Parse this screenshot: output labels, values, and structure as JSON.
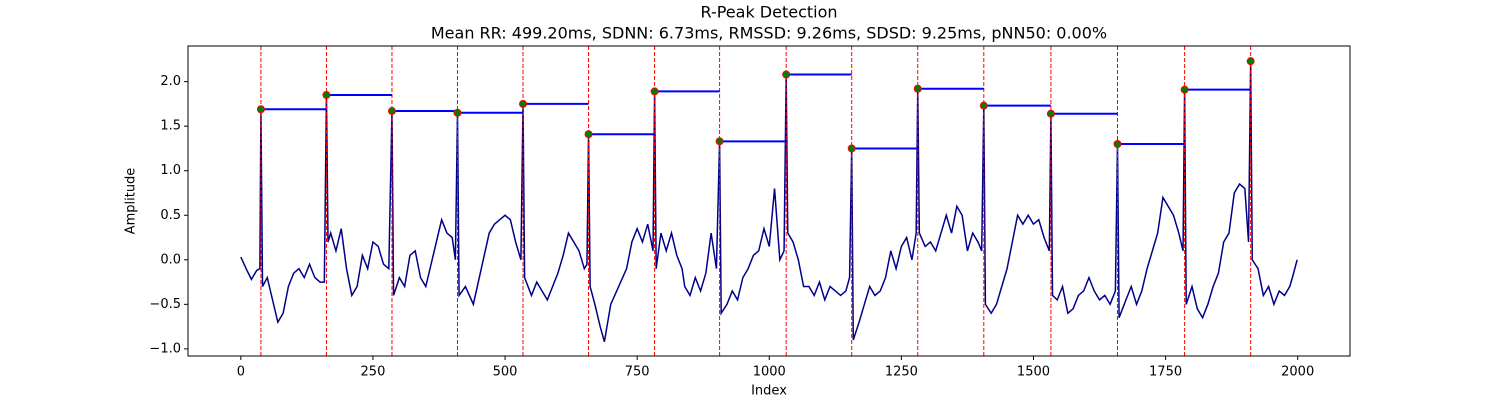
{
  "chart_data": {
    "type": "line",
    "title": "R-Peak Detection",
    "subtitle": "Mean RR: 499.20ms, SDNN: 6.73ms, RMSSD: 9.26ms, SDSD: 9.25ms, pNN50: 0.00%",
    "xlabel": "Index",
    "ylabel": "Amplitude",
    "xlim": [
      -100,
      2099
    ],
    "ylim": [
      -1.08,
      2.4
    ],
    "xticks": [
      0,
      250,
      500,
      750,
      1000,
      1250,
      1500,
      1750,
      2000
    ],
    "yticks": [
      {
        "value": -1,
        "label": "−1.0"
      },
      {
        "value": -0.5,
        "label": "−0.5"
      },
      {
        "value": 0,
        "label": "0.0"
      },
      0.5,
      {
        "value": 1,
        "label": "1.0"
      },
      1.5,
      {
        "value": 2,
        "label": "2.0"
      }
    ],
    "signal": {
      "color": "#00008b",
      "x": [
        0,
        10,
        20,
        30,
        36,
        38,
        41,
        50,
        60,
        70,
        80,
        90,
        100,
        110,
        120,
        130,
        140,
        150,
        158,
        162,
        165,
        170,
        180,
        190,
        200,
        210,
        220,
        230,
        240,
        250,
        260,
        270,
        280,
        286,
        289,
        300,
        310,
        320,
        330,
        340,
        350,
        360,
        370,
        380,
        390,
        400,
        406,
        410,
        413,
        425,
        440,
        455,
        470,
        480,
        490,
        500,
        510,
        520,
        530,
        534,
        537,
        550,
        560,
        570,
        580,
        590,
        600,
        610,
        620,
        630,
        640,
        650,
        655,
        658,
        661,
        670,
        680,
        688,
        700,
        715,
        730,
        740,
        750,
        760,
        770,
        780,
        783,
        786,
        795,
        805,
        815,
        825,
        835,
        840,
        850,
        860,
        870,
        880,
        890,
        900,
        906,
        909,
        920,
        930,
        940,
        950,
        960,
        970,
        980,
        990,
        1000,
        1010,
        1020,
        1028,
        1032,
        1035,
        1045,
        1055,
        1065,
        1075,
        1085,
        1095,
        1105,
        1115,
        1125,
        1135,
        1145,
        1152,
        1156,
        1159,
        1170,
        1180,
        1190,
        1200,
        1210,
        1220,
        1230,
        1240,
        1250,
        1260,
        1270,
        1278,
        1281,
        1284,
        1295,
        1305,
        1315,
        1325,
        1335,
        1345,
        1355,
        1365,
        1375,
        1385,
        1395,
        1402,
        1406,
        1409,
        1420,
        1430,
        1440,
        1450,
        1460,
        1470,
        1480,
        1490,
        1500,
        1510,
        1520,
        1530,
        1533,
        1536,
        1545,
        1555,
        1565,
        1575,
        1585,
        1595,
        1605,
        1615,
        1625,
        1635,
        1645,
        1655,
        1659,
        1662,
        1675,
        1685,
        1695,
        1705,
        1715,
        1725,
        1735,
        1745,
        1755,
        1765,
        1775,
        1783,
        1786,
        1789,
        1800,
        1810,
        1820,
        1830,
        1840,
        1850,
        1860,
        1870,
        1880,
        1890,
        1900,
        1907,
        1911,
        1914,
        1925,
        1935,
        1945,
        1955,
        1965,
        1975,
        1985,
        1990,
        1999
      ],
      "values": [
        0.03,
        -0.1,
        -0.22,
        -0.12,
        -0.1,
        1.69,
        -0.3,
        -0.2,
        -0.45,
        -0.7,
        -0.6,
        -0.3,
        -0.15,
        -0.1,
        -0.2,
        -0.05,
        -0.2,
        -0.25,
        -0.25,
        1.85,
        0.2,
        0.3,
        0.1,
        0.35,
        -0.1,
        -0.4,
        -0.3,
        0.05,
        -0.1,
        0.2,
        0.15,
        -0.05,
        -0.1,
        1.67,
        -0.4,
        -0.2,
        -0.3,
        0.05,
        0.1,
        -0.2,
        -0.3,
        -0.05,
        0.2,
        0.45,
        0.3,
        0.25,
        0.0,
        1.65,
        -0.4,
        -0.3,
        -0.5,
        -0.1,
        0.3,
        0.4,
        0.45,
        0.5,
        0.45,
        0.2,
        0.0,
        1.75,
        -0.2,
        -0.4,
        -0.25,
        -0.35,
        -0.45,
        -0.3,
        -0.15,
        0.05,
        0.3,
        0.2,
        0.1,
        -0.1,
        -0.05,
        1.41,
        -0.3,
        -0.5,
        -0.75,
        -0.92,
        -0.5,
        -0.3,
        -0.1,
        0.2,
        0.35,
        0.2,
        0.4,
        0.1,
        1.89,
        -0.1,
        0.3,
        0.1,
        0.3,
        0.05,
        -0.1,
        -0.3,
        -0.4,
        -0.2,
        -0.35,
        -0.15,
        0.3,
        -0.1,
        1.33,
        -0.6,
        -0.5,
        -0.35,
        -0.45,
        -0.2,
        -0.1,
        0.05,
        0.1,
        0.35,
        0.15,
        0.8,
        0.0,
        0.1,
        2.08,
        0.3,
        0.2,
        0.0,
        -0.3,
        -0.3,
        -0.4,
        -0.25,
        -0.45,
        -0.3,
        -0.35,
        -0.4,
        -0.35,
        -0.2,
        1.25,
        -0.9,
        -0.7,
        -0.5,
        -0.3,
        -0.4,
        -0.35,
        -0.2,
        0.1,
        -0.1,
        0.15,
        0.25,
        0.0,
        0.3,
        1.92,
        0.3,
        0.15,
        0.2,
        0.1,
        0.3,
        0.5,
        0.3,
        0.6,
        0.5,
        0.1,
        0.3,
        0.2,
        0.1,
        1.73,
        -0.5,
        -0.6,
        -0.5,
        -0.3,
        -0.1,
        0.2,
        0.5,
        0.4,
        0.5,
        0.4,
        0.45,
        0.25,
        0.1,
        1.64,
        -0.4,
        -0.45,
        -0.3,
        -0.6,
        -0.55,
        -0.4,
        -0.35,
        -0.2,
        -0.35,
        -0.45,
        -0.4,
        -0.5,
        -0.35,
        1.3,
        -0.65,
        -0.45,
        -0.3,
        -0.5,
        -0.35,
        -0.1,
        0.1,
        0.3,
        0.7,
        0.6,
        0.5,
        0.3,
        0.1,
        1.91,
        -0.5,
        -0.3,
        -0.55,
        -0.65,
        -0.5,
        -0.3,
        -0.15,
        0.2,
        0.3,
        0.75,
        0.85,
        0.8,
        0.2,
        2.23,
        0.0,
        -0.1,
        -0.4,
        -0.3,
        -0.5,
        -0.35,
        -0.4,
        -0.3,
        -0.2,
        0.0
      ]
    },
    "peaks": {
      "color": "green",
      "edgecolor": "red",
      "line_color": "red",
      "rr_color": "blue",
      "x": [
        38,
        162,
        286,
        410,
        534,
        658,
        783,
        906,
        1032,
        1156,
        1281,
        1406,
        1533,
        1659,
        1786,
        1911
      ],
      "values": [
        1.69,
        1.85,
        1.67,
        1.65,
        1.75,
        1.41,
        1.89,
        1.33,
        2.08,
        1.25,
        1.92,
        1.73,
        1.64,
        1.3,
        1.91,
        2.23
      ]
    }
  }
}
